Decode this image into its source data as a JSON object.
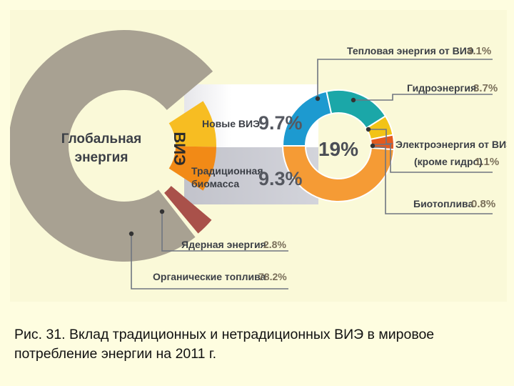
{
  "caption": "Рис. 31. Вклад традиционных и нетрадиционных ВИЭ в мировое потребление энергии на 2011 г.",
  "chart_data": {
    "type": "pie",
    "center_label": "Глобальная энергия",
    "segments": [
      {
        "key": "fossil",
        "label": "Органические топлива",
        "value": 78.2,
        "value_text": "78.2%",
        "color": "#a8a192"
      },
      {
        "key": "nuclear",
        "label": "Ядерная энергия",
        "value": 2.8,
        "value_text": "2.8%",
        "color": "#a9514a"
      },
      {
        "key": "res",
        "label": "ВИЭ",
        "value": 19,
        "value_text": "19%",
        "color": "#f3a51c"
      }
    ],
    "res_breakdown": [
      {
        "key": "new_res",
        "label": "Новые ВИЭ",
        "value": 9.7,
        "value_text": "9.7%",
        "color": "#f7bd22"
      },
      {
        "key": "biomass",
        "label": "Традиционная биомасса",
        "value": 9.3,
        "value_text": "9.3%",
        "color": "#f28a16"
      }
    ],
    "res_donut": {
      "center_label": "19%",
      "segments": [
        {
          "key": "heat",
          "label": "Тепловая энергия от ВИЭ",
          "value": 4.1,
          "value_text": "4.1%",
          "color": "#1d9ad0"
        },
        {
          "key": "hydro",
          "label": "Гидроэнергия",
          "value": 3.7,
          "value_text": "3.7%",
          "color": "#1ba7a8"
        },
        {
          "key": "electricity",
          "label": "Электроэнергия от ВИЭ (кроме гидро)",
          "value": 1.1,
          "value_text": "1.1%",
          "color": "#f2c316"
        },
        {
          "key": "biofuel",
          "label": "Биотоплива",
          "value": 0.8,
          "value_text": "0.8%",
          "color": "#e35a1f"
        },
        {
          "key": "biomass",
          "label": "Традиционная биомасса",
          "value": 9.3,
          "value_text": "9.3%",
          "color": "#f59b35"
        }
      ]
    }
  }
}
